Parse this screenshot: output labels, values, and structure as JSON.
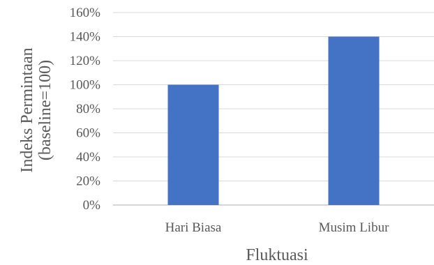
{
  "chart_data": {
    "type": "bar",
    "title": "",
    "categories": [
      "Hari Biasa",
      "Musim Libur"
    ],
    "values": [
      100,
      140
    ],
    "xlabel": "Fluktuasi",
    "ylabel_lines": [
      "Indeks Permintaan",
      "(baseline=100)"
    ],
    "ylim": [
      0,
      160
    ],
    "yticks": [
      0,
      20,
      40,
      60,
      80,
      100,
      120,
      140,
      160
    ],
    "ytick_labels": [
      "0%",
      "20%",
      "40%",
      "60%",
      "80%",
      "100%",
      "120%",
      "140%",
      "160%"
    ],
    "grid": true,
    "legend": "none",
    "bar_color": "#4472c4"
  }
}
